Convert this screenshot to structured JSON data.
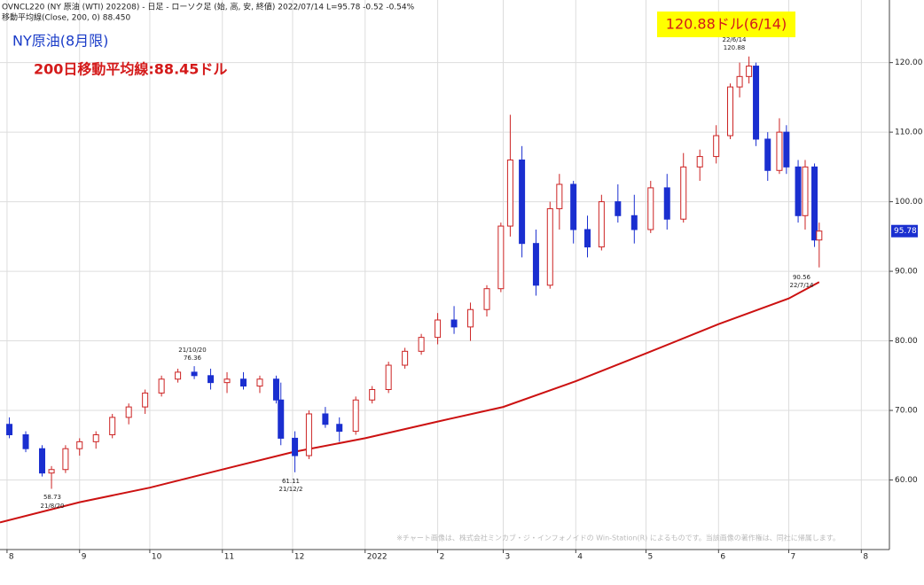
{
  "chart_data": {
    "type": "candlestick",
    "header": "OVNCL220 (NY 原油 (WTI) 202208) - 日足 - ローソク足 (始, 高, 安, 終値)  2022/07/14 L=95.78 -0.52  -0.54%",
    "subheader": "移動平均線(Close, 200, 0) 88.450",
    "title": "NY原油(8月限)",
    "ma_label": "200日移動平均線:88.45ドル",
    "peak_label": "120.88ドル(6/14)",
    "copyright": "※チャート画像は、株式会社ミンカブ・ジ・インフォノイドの Win-Station(R) によるものです。当該画像の著作権は、同社に帰属します。",
    "annotation_dates": [
      "22/6/14",
      "21/10/20",
      "21/12/2",
      "21/8/20",
      "22/7/14"
    ],
    "up_color": "#cc2222",
    "down_color": "#1a2fd0",
    "candles": {
      "x": [
        "2021-08-02",
        "2021-08-09",
        "2021-08-16",
        "2021-08-20",
        "2021-08-26",
        "2021-09-01",
        "2021-09-08",
        "2021-09-15",
        "2021-09-22",
        "2021-09-29",
        "2021-10-06",
        "2021-10-13",
        "2021-10-20",
        "2021-10-27",
        "2021-11-03",
        "2021-11-10",
        "2021-11-17",
        "2021-11-24",
        "2021-11-26",
        "2021-12-02",
        "2021-12-08",
        "2021-12-15",
        "2021-12-21",
        "2021-12-28",
        "2022-01-04",
        "2022-01-11",
        "2022-01-18",
        "2022-01-25",
        "2022-02-01",
        "2022-02-08",
        "2022-02-15",
        "2022-02-22",
        "2022-02-28",
        "2022-03-04",
        "2022-03-09",
        "2022-03-15",
        "2022-03-21",
        "2022-03-25",
        "2022-03-31",
        "2022-04-06",
        "2022-04-12",
        "2022-04-19",
        "2022-04-26",
        "2022-05-03",
        "2022-05-10",
        "2022-05-17",
        "2022-05-24",
        "2022-05-31",
        "2022-06-06",
        "2022-06-10",
        "2022-06-14",
        "2022-06-17",
        "2022-06-22",
        "2022-06-27",
        "2022-06-30",
        "2022-07-05",
        "2022-07-08",
        "2022-07-12",
        "2022-07-14"
      ],
      "open": [
        68,
        66.5,
        64.5,
        61,
        61.5,
        64.5,
        65.5,
        66.5,
        69,
        70.5,
        72.5,
        74.5,
        75.5,
        75,
        74,
        74.5,
        73.5,
        74.5,
        71.5,
        66,
        63.5,
        69.5,
        68,
        67,
        71.5,
        73,
        76.5,
        78.5,
        80.5,
        83,
        82,
        84.5,
        87.5,
        96.5,
        106,
        94,
        88,
        99,
        102.5,
        96,
        93.5,
        100,
        98,
        96,
        102,
        97.5,
        105,
        106.5,
        109.5,
        116.5,
        118,
        119.5,
        109,
        104.5,
        110,
        105,
        98,
        105,
        94.5
      ],
      "high": [
        69,
        67,
        65,
        62,
        65,
        66,
        67,
        69.5,
        71,
        73,
        75,
        76,
        76.36,
        76,
        75.5,
        75.5,
        75,
        75,
        74,
        67,
        70,
        70.5,
        69,
        72,
        73.5,
        77,
        79,
        81,
        84,
        85,
        85.5,
        88,
        97,
        112.5,
        108,
        96,
        100,
        104,
        103,
        98,
        101,
        102.5,
        101,
        103,
        104,
        107,
        107.5,
        111,
        117,
        120,
        120.88,
        120,
        110,
        112,
        111,
        106,
        106,
        105.5,
        97
      ],
      "low": [
        66,
        64,
        60.5,
        58.73,
        61,
        63.5,
        64.5,
        66,
        68,
        69.5,
        72,
        74,
        74.5,
        73,
        72.5,
        73,
        72.5,
        71,
        65,
        61.11,
        63,
        67.5,
        65.5,
        66.5,
        71,
        72.5,
        76,
        78,
        79.5,
        81,
        80,
        83.5,
        87,
        95,
        92,
        86.5,
        87.5,
        96,
        94,
        92,
        93,
        97,
        94,
        95.5,
        96,
        97,
        103,
        105.5,
        109,
        115,
        117,
        108,
        103,
        104,
        104,
        97,
        96,
        93.5,
        90.56
      ],
      "close": [
        66.5,
        64.5,
        61,
        61.5,
        64.5,
        65.5,
        66.5,
        69,
        70.5,
        72.5,
        74.5,
        75.5,
        75,
        74,
        74.5,
        73.5,
        74.5,
        71.5,
        66,
        63.5,
        69.5,
        68,
        67,
        71.5,
        73,
        76.5,
        78.5,
        80.5,
        83,
        82,
        84.5,
        87.5,
        96.5,
        106,
        94,
        88,
        99,
        102.5,
        96,
        93.5,
        100,
        98,
        96,
        102,
        97.5,
        105,
        106.5,
        109.5,
        116.5,
        118,
        119.5,
        109,
        104.5,
        110,
        105,
        98,
        105,
        94.5,
        95.78
      ]
    },
    "moving_average": {
      "color": "#cc1111",
      "x": [
        "2021-07-29",
        "2021-09-01",
        "2021-10-01",
        "2021-11-01",
        "2021-12-01",
        "2022-01-01",
        "2022-02-01",
        "2022-03-01",
        "2022-04-01",
        "2022-05-01",
        "2022-06-01",
        "2022-07-01",
        "2022-07-14"
      ],
      "values": [
        53.9,
        56.8,
        58.9,
        61.5,
        64,
        66,
        68.4,
        70.5,
        74.2,
        78.2,
        82.4,
        86.1,
        88.45
      ]
    },
    "xlim": [
      "2021-07-29",
      "2022-08-13"
    ],
    "xticks": [
      {
        "value": "2021-08-01",
        "label": "8"
      },
      {
        "value": "2021-09-01",
        "label": "9"
      },
      {
        "value": "2021-10-01",
        "label": "10"
      },
      {
        "value": "2021-11-01",
        "label": "11"
      },
      {
        "value": "2021-12-01",
        "label": "12"
      },
      {
        "value": "2022-01-01",
        "label": "2022"
      },
      {
        "value": "2022-02-01",
        "label": "2"
      },
      {
        "value": "2022-03-01",
        "label": "3"
      },
      {
        "value": "2022-04-01",
        "label": "4"
      },
      {
        "value": "2022-05-01",
        "label": "5"
      },
      {
        "value": "2022-06-01",
        "label": "6"
      },
      {
        "value": "2022-07-01",
        "label": "7"
      },
      {
        "value": "2022-08-01",
        "label": "8"
      }
    ],
    "ylim": [
      50,
      129
    ],
    "yticks": [
      {
        "value": 60,
        "label": "60.00"
      },
      {
        "value": 70,
        "label": "70.00"
      },
      {
        "value": 80,
        "label": "80.00"
      },
      {
        "value": 90,
        "label": "90.00"
      },
      {
        "value": 100,
        "label": "100.00"
      },
      {
        "value": 110,
        "label": "110.00"
      },
      {
        "value": 120,
        "label": "120.00"
      }
    ],
    "grid": true
  }
}
